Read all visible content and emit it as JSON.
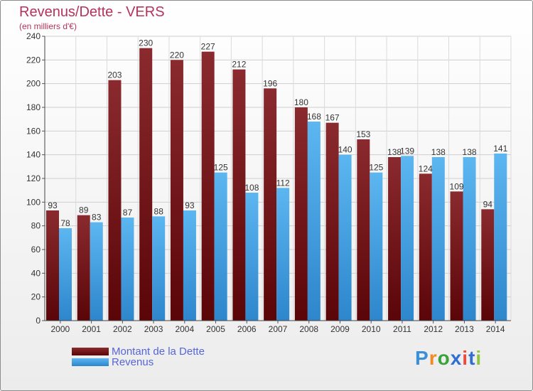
{
  "title": "Revenus/Dette - VERS",
  "subtitle": "(en milliers d'€)",
  "logo": {
    "text": "Proxiti",
    "colors": [
      "#3a8fd8",
      "#f08a24",
      "#37a339",
      "#2f6fd1",
      "#e74c3c",
      "#2f6fd1",
      "#8cc63f"
    ]
  },
  "colors": {
    "dette": "#6e0f12",
    "revenus": "#3c9ee6",
    "text": "#b5335a",
    "legend_text": "#5566d8"
  },
  "legend": [
    {
      "label": "Montant de la Dette",
      "color": "#6e0f12"
    },
    {
      "label": "Revenus",
      "color": "#3c9ee6"
    }
  ],
  "chart_data": {
    "type": "bar",
    "categories": [
      "2000",
      "2001",
      "2002",
      "2003",
      "2004",
      "2005",
      "2006",
      "2007",
      "2008",
      "2009",
      "2010",
      "2011",
      "2012",
      "2013",
      "2014"
    ],
    "series": [
      {
        "name": "Montant de la Dette",
        "values": [
          93,
          89,
          203,
          230,
          220,
          227,
          212,
          196,
          180,
          167,
          153,
          138,
          124,
          109,
          94
        ]
      },
      {
        "name": "Revenus",
        "values": [
          78,
          83,
          87,
          88,
          93,
          125,
          108,
          112,
          168,
          140,
          125,
          139,
          138,
          138,
          141
        ]
      }
    ],
    "ylim": [
      0,
      240
    ],
    "yticks": [
      0,
      20,
      40,
      60,
      80,
      100,
      120,
      140,
      160,
      180,
      200,
      220,
      240
    ],
    "grid": true,
    "legend_position": "bottom-left"
  }
}
